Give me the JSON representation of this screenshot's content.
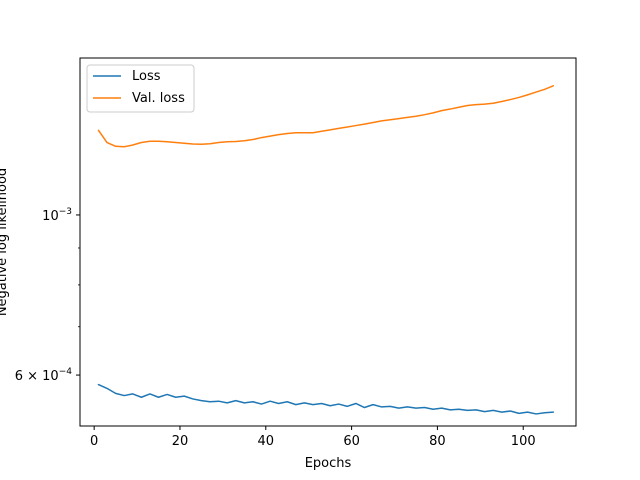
{
  "chart_data": {
    "type": "line",
    "title": "",
    "xlabel": "Epochs",
    "ylabel": "Negative log likelihood",
    "yscale": "log",
    "xlim": [
      -3.3,
      112.3
    ],
    "ylim": [
      0.00051,
      0.00165
    ],
    "xticks": [
      {
        "value": 0,
        "label": "0"
      },
      {
        "value": 20,
        "label": "20"
      },
      {
        "value": 40,
        "label": "40"
      },
      {
        "value": 60,
        "label": "60"
      },
      {
        "value": 80,
        "label": "80"
      },
      {
        "value": 100,
        "label": "100"
      }
    ],
    "yticks_major": [
      {
        "value": 0.001,
        "label_base": "10",
        "label_exp": "−3"
      },
      {
        "value": 0.0006,
        "label_base": "6 × 10",
        "label_exp": "−4"
      }
    ],
    "yticks_minor": [
      0.0007,
      0.0008,
      0.0009
    ],
    "grid": false,
    "legend_position": "upper-left",
    "series": [
      {
        "name": "Loss",
        "color": "#1f77b4",
        "points": [
          [
            1,
            0.000582
          ],
          [
            3,
            0.000575
          ],
          [
            5,
            0.000566
          ],
          [
            7,
            0.000562
          ],
          [
            9,
            0.000565
          ],
          [
            11,
            0.000559
          ],
          [
            13,
            0.000565
          ],
          [
            15,
            0.000559
          ],
          [
            17,
            0.000564
          ],
          [
            19,
            0.000559
          ],
          [
            21,
            0.000561
          ],
          [
            23,
            0.000556
          ],
          [
            25,
            0.000553
          ],
          [
            27,
            0.000551
          ],
          [
            29,
            0.000552
          ],
          [
            31,
            0.000549
          ],
          [
            33,
            0.000553
          ],
          [
            35,
            0.000549
          ],
          [
            37,
            0.000551
          ],
          [
            39,
            0.000547
          ],
          [
            41,
            0.000552
          ],
          [
            43,
            0.000548
          ],
          [
            45,
            0.000551
          ],
          [
            47,
            0.000546
          ],
          [
            49,
            0.000549
          ],
          [
            51,
            0.000546
          ],
          [
            53,
            0.000548
          ],
          [
            55,
            0.000544
          ],
          [
            57,
            0.000547
          ],
          [
            59,
            0.000543
          ],
          [
            61,
            0.000548
          ],
          [
            63,
            0.000541
          ],
          [
            65,
            0.000546
          ],
          [
            67,
            0.000542
          ],
          [
            69,
            0.000543
          ],
          [
            71,
            0.00054
          ],
          [
            73,
            0.000542
          ],
          [
            75,
            0.00054
          ],
          [
            77,
            0.000541
          ],
          [
            79,
            0.000538
          ],
          [
            81,
            0.00054
          ],
          [
            83,
            0.000537
          ],
          [
            85,
            0.000538
          ],
          [
            87,
            0.000536
          ],
          [
            89,
            0.000537
          ],
          [
            91,
            0.000534
          ],
          [
            93,
            0.000536
          ],
          [
            95,
            0.000533
          ],
          [
            97,
            0.000535
          ],
          [
            99,
            0.000531
          ],
          [
            101,
            0.000533
          ],
          [
            103,
            0.00053
          ],
          [
            105,
            0.000532
          ],
          [
            107,
            0.000533
          ]
        ]
      },
      {
        "name": "Val. loss",
        "color": "#ff7f0e",
        "points": [
          [
            1,
            0.00131
          ],
          [
            3,
            0.00126
          ],
          [
            5,
            0.001245
          ],
          [
            7,
            0.001243
          ],
          [
            9,
            0.00125
          ],
          [
            11,
            0.00126
          ],
          [
            13,
            0.001265
          ],
          [
            15,
            0.001265
          ],
          [
            17,
            0.001263
          ],
          [
            19,
            0.00126
          ],
          [
            21,
            0.001257
          ],
          [
            23,
            0.001254
          ],
          [
            25,
            0.001253
          ],
          [
            27,
            0.001255
          ],
          [
            29,
            0.00126
          ],
          [
            31,
            0.001263
          ],
          [
            33,
            0.001264
          ],
          [
            35,
            0.001267
          ],
          [
            37,
            0.001272
          ],
          [
            39,
            0.00128
          ],
          [
            41,
            0.001286
          ],
          [
            43,
            0.001292
          ],
          [
            45,
            0.001297
          ],
          [
            47,
            0.0013
          ],
          [
            49,
            0.0013
          ],
          [
            51,
            0.0013
          ],
          [
            53,
            0.001306
          ],
          [
            55,
            0.001312
          ],
          [
            57,
            0.001318
          ],
          [
            59,
            0.001324
          ],
          [
            61,
            0.00133
          ],
          [
            63,
            0.001336
          ],
          [
            65,
            0.001343
          ],
          [
            67,
            0.00135
          ],
          [
            69,
            0.001355
          ],
          [
            71,
            0.00136
          ],
          [
            73,
            0.001365
          ],
          [
            75,
            0.00137
          ],
          [
            77,
            0.001377
          ],
          [
            79,
            0.001385
          ],
          [
            81,
            0.001395
          ],
          [
            83,
            0.001402
          ],
          [
            85,
            0.00141
          ],
          [
            87,
            0.001418
          ],
          [
            89,
            0.001422
          ],
          [
            91,
            0.001424
          ],
          [
            93,
            0.001428
          ],
          [
            95,
            0.001436
          ],
          [
            97,
            0.001445
          ],
          [
            99,
            0.001455
          ],
          [
            101,
            0.001467
          ],
          [
            103,
            0.00148
          ],
          [
            105,
            0.001493
          ],
          [
            107,
            0.00151
          ]
        ]
      }
    ]
  }
}
